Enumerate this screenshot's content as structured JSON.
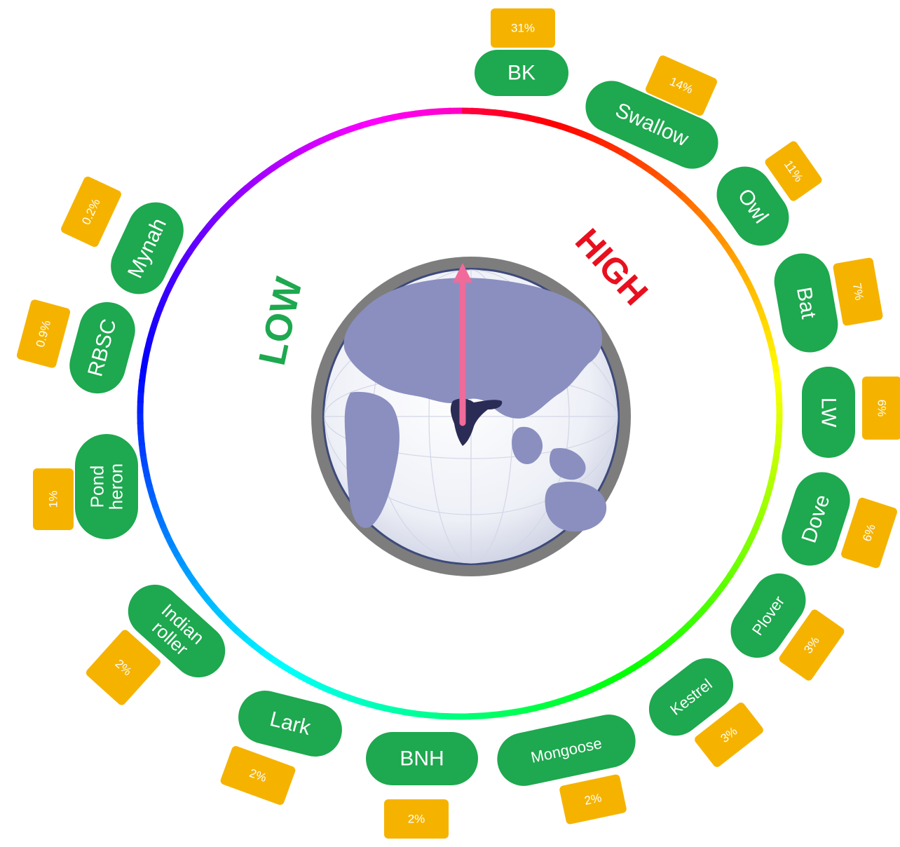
{
  "labels": {
    "low": "LOW",
    "high": "HIGH"
  },
  "colors": {
    "pill": "#1ea84f",
    "badge": "#f5b300",
    "low": "#1ea84f",
    "high": "#e8101e",
    "needle": "#f06a9a",
    "ring": "#7d7d7d",
    "land": "#8a8fc0",
    "india": "#2b2c55"
  },
  "chart_data": {
    "type": "radial",
    "items": [
      {
        "name": "BK",
        "value": "31%"
      },
      {
        "name": "Swallow",
        "value": "14%"
      },
      {
        "name": "Owl",
        "value": "11%"
      },
      {
        "name": "Bat",
        "value": "7%"
      },
      {
        "name": "LW",
        "value": "6%"
      },
      {
        "name": "Dove",
        "value": "6%"
      },
      {
        "name": "Plover",
        "value": "3%"
      },
      {
        "name": "Kestrel",
        "value": "3%"
      },
      {
        "name": "Mongoose",
        "value": "2%"
      },
      {
        "name": "BNH",
        "value": "2%"
      },
      {
        "name": "Lark",
        "value": "2%"
      },
      {
        "name": "Indian roller",
        "value": "2%"
      },
      {
        "name": "Pond heron",
        "value": "1%"
      },
      {
        "name": "RBSC",
        "value": "0.9%"
      },
      {
        "name": "Mynah",
        "value": "0.2%"
      }
    ]
  }
}
